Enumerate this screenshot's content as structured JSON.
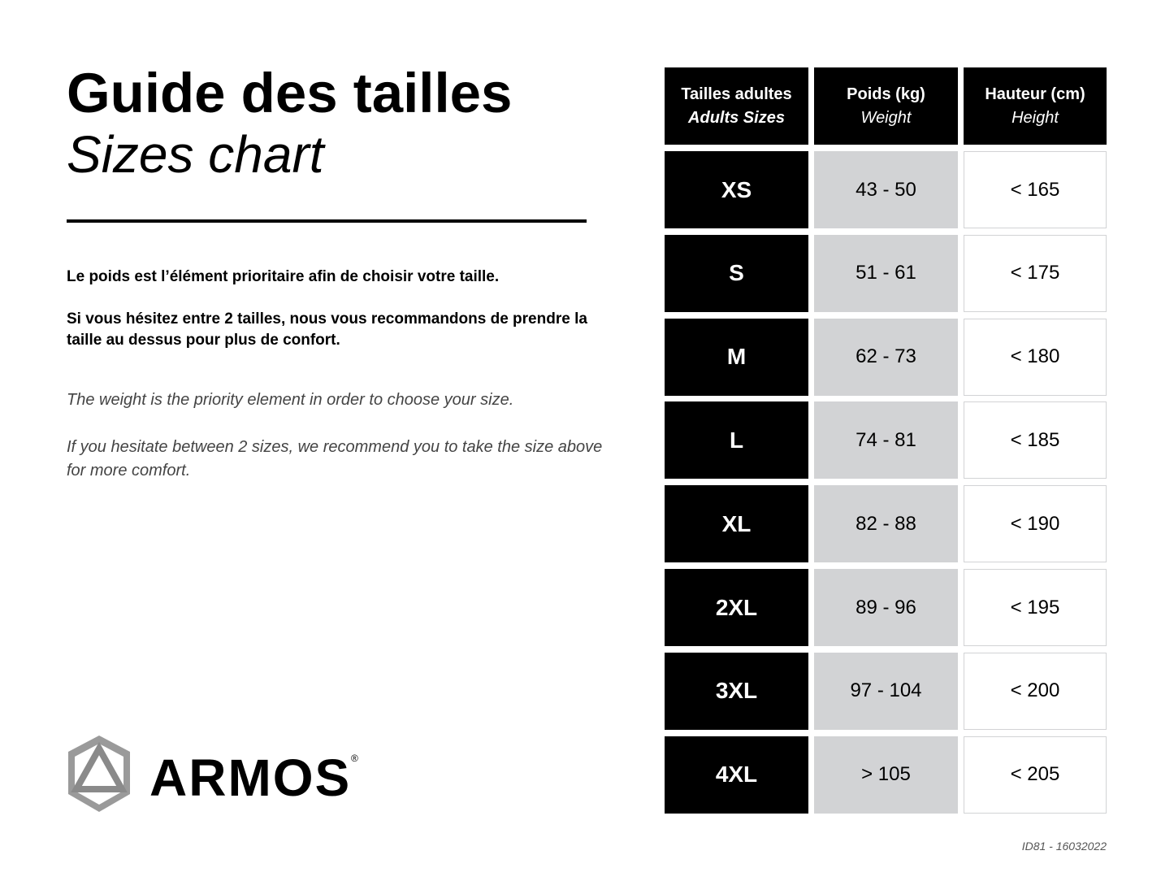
{
  "header": {
    "title": "Guide des tailles",
    "subtitle": "Sizes chart"
  },
  "text": {
    "fr_1": "Le poids est l’élément prioritaire afin de choisir votre taille.",
    "fr_2": "Si vous hésitez entre 2 tailles, nous vous recommandons de prendre la taille au dessus pour plus de confort.",
    "en_1": "The weight is the priority element in order to choose your size.",
    "en_2": "If you hesitate between 2 sizes, we recommend you to take the size above for more comfort."
  },
  "table": {
    "columns": [
      {
        "label": "Tailles adultes",
        "sublabel": "Adults Sizes"
      },
      {
        "label": "Poids (kg)",
        "sublabel": "Weight"
      },
      {
        "label": "Hauteur (cm)",
        "sublabel": "Height"
      }
    ],
    "rows": [
      {
        "size": "XS",
        "weight": "43 - 50",
        "height": "< 165"
      },
      {
        "size": "S",
        "weight": "51 - 61",
        "height": "< 175"
      },
      {
        "size": "M",
        "weight": "62 - 73",
        "height": "< 180"
      },
      {
        "size": "L",
        "weight": "74 - 81",
        "height": "< 185"
      },
      {
        "size": "XL",
        "weight": "82 - 88",
        "height": "< 190"
      },
      {
        "size": "2XL",
        "weight": "89 - 96",
        "height": "< 195"
      },
      {
        "size": "3XL",
        "weight": "97 - 104",
        "height": "< 200"
      },
      {
        "size": "4XL",
        "weight": "> 105",
        "height": "< 205"
      }
    ]
  },
  "brand": {
    "name": "ARMOS",
    "mark": "®"
  },
  "footer": {
    "id": "ID81 - 16032022"
  },
  "colors": {
    "header_bg": "#000000",
    "weight_bg": "#d2d3d5",
    "height_border": "#d2d3d5"
  }
}
